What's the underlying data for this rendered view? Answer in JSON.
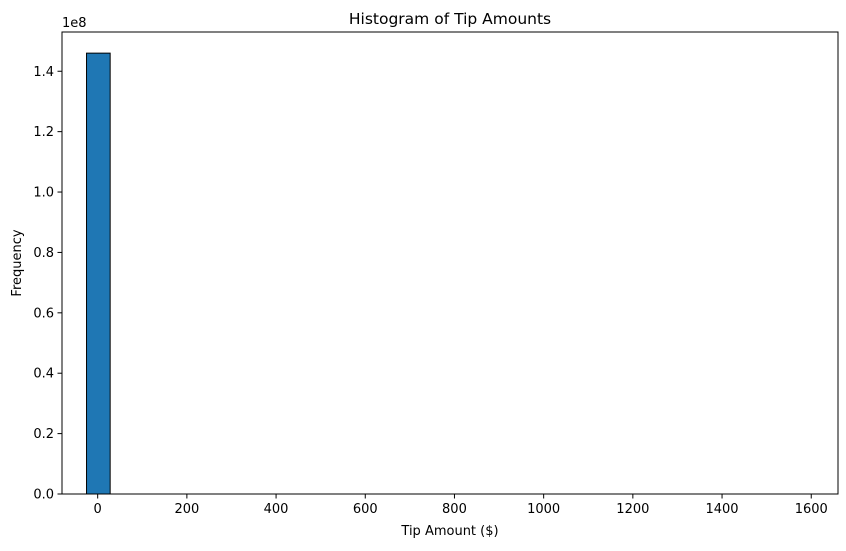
{
  "chart_data": {
    "type": "bar",
    "title": "Histogram of Tip Amounts",
    "xlabel": "Tip Amount ($)",
    "ylabel": "Frequency",
    "y_offset_text": "1e8",
    "xlim": [
      -80,
      1660
    ],
    "ylim": [
      0,
      153000000
    ],
    "x_ticks": [
      0,
      200,
      400,
      600,
      800,
      1000,
      1200,
      1400,
      1600
    ],
    "x_tick_labels": [
      "0",
      "200",
      "400",
      "600",
      "800",
      "1000",
      "1200",
      "1400",
      "1600"
    ],
    "y_ticks": [
      0,
      20000000,
      40000000,
      60000000,
      80000000,
      100000000,
      120000000,
      140000000
    ],
    "y_tick_labels": [
      "0.0",
      "0.2",
      "0.4",
      "0.6",
      "0.8",
      "1.0",
      "1.2",
      "1.4"
    ],
    "bins": [
      {
        "x0": -25,
        "x1": 28,
        "count": 146000000
      }
    ],
    "grid": false,
    "legend": "none",
    "bar_color": "#1f77b4",
    "edge_color": "#000000"
  }
}
